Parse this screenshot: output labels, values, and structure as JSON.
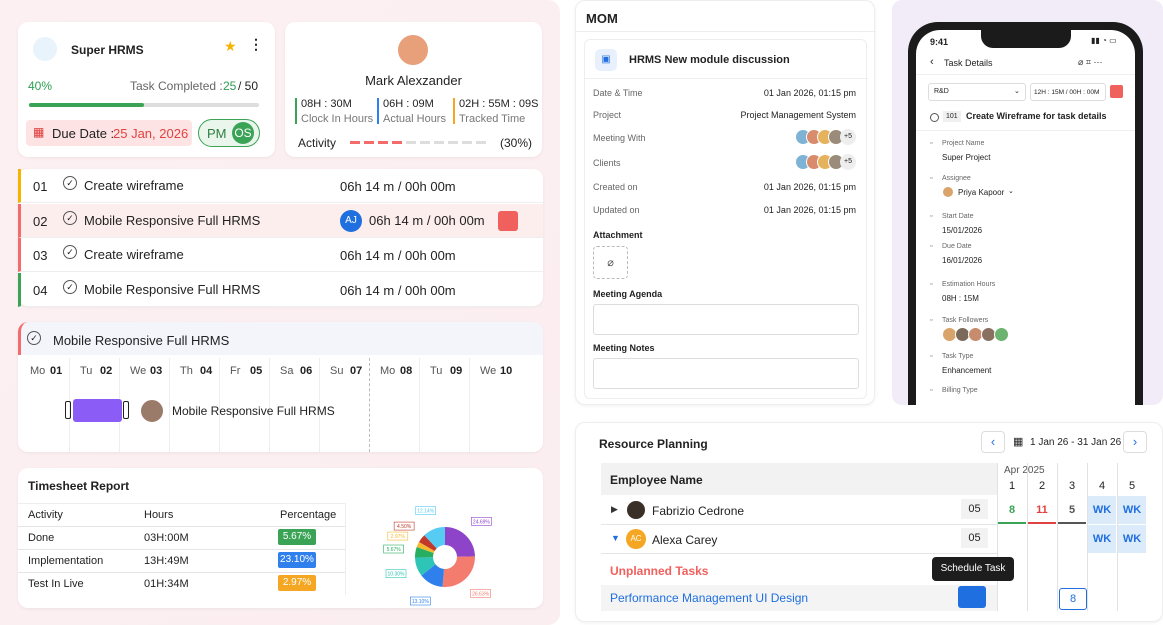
{
  "profile_card": {
    "app_name": "Super HRMS",
    "progress": "40%",
    "task_completed_label": "Task Completed :",
    "task_done": "25",
    "task_total": "/ 50",
    "due_label": "Due Date :",
    "due_date": "25 Jan, 2026",
    "badges": [
      "PM",
      "OS"
    ]
  },
  "user_card": {
    "name": "Mark Alexzander",
    "stats": [
      {
        "value": "08H : 30M",
        "label": "Clock In Hours"
      },
      {
        "value": "06H : 09M",
        "label": "Actual Hours"
      },
      {
        "value": "02H : 55M : 09S",
        "label": "Tracked Time"
      }
    ],
    "activity_label": "Activity",
    "activity_percent": "(30%)"
  },
  "tasks": [
    {
      "index": "01",
      "title": "Create wireframe",
      "time": "06h 14 m / 00h 00m"
    },
    {
      "index": "02",
      "title": "Mobile Responsive Full HRMS",
      "time": "06h 14 m / 00h 00m",
      "avatar": "AJ"
    },
    {
      "index": "03",
      "title": "Create wireframe",
      "time": "06h 14 m / 00h 00m"
    },
    {
      "index": "04",
      "title": "Mobile Responsive Full HRMS",
      "time": "06h 14 m / 00h 00m"
    }
  ],
  "gantt": {
    "title": "Mobile Responsive Full HRMS",
    "days": [
      {
        "dow": "Mo",
        "num": "01"
      },
      {
        "dow": "Tu",
        "num": "02"
      },
      {
        "dow": "We",
        "num": "03"
      },
      {
        "dow": "Th",
        "num": "04"
      },
      {
        "dow": "Fr",
        "num": "05"
      },
      {
        "dow": "Sa",
        "num": "06"
      },
      {
        "dow": "Su",
        "num": "07"
      },
      {
        "dow": "Mo",
        "num": "08"
      },
      {
        "dow": "Tu",
        "num": "09"
      },
      {
        "dow": "We",
        "num": "10"
      }
    ],
    "bar_label": "Mobile Responsive Full HRMS"
  },
  "timesheet": {
    "title": "Timesheet Report",
    "columns": [
      "Activity",
      "Hours",
      "Percentage"
    ],
    "rows": [
      [
        "Done",
        "03H:00M",
        "5.67%"
      ],
      [
        "Implementation",
        "13H:49M",
        "23.10%"
      ],
      [
        "Test In Live",
        "01H:34M",
        "2.97%"
      ]
    ],
    "pie": {
      "values": [
        24.69,
        26.63,
        13.1,
        10.3,
        5.67,
        2.97,
        4.5,
        12.14
      ],
      "value_labels": [
        "24.69%",
        "26.63%",
        "13.10%",
        "10.30%",
        "5.67%",
        "2.97%",
        "4.50%",
        "12.14%"
      ],
      "colors": [
        "#8e44c9",
        "#f47c6e",
        "#2f80ed",
        "#2ec4b6",
        "#27ae60",
        "#f5b82e",
        "#c0392b",
        "#56ccf2"
      ]
    }
  },
  "mom": {
    "title": "MOM",
    "meeting_title": "HRMS New module discussion",
    "fields": [
      {
        "label": "Date & Time",
        "value": "01 Jan 2026, 01:15 pm"
      },
      {
        "label": "Project",
        "value": "Project Management System"
      },
      {
        "label": "Meeting With",
        "more": "+5"
      },
      {
        "label": "Clients",
        "more": "+5"
      },
      {
        "label": "Created on",
        "value": "01 Jan 2026, 01:15 pm"
      },
      {
        "label": "Updated on",
        "value": "01 Jan 2026, 01:15 pm"
      }
    ],
    "attachment": "Attachment",
    "agenda": "Meeting Agenda",
    "notes": "Meeting Notes"
  },
  "phone": {
    "time": "9:41",
    "header": "Task Details",
    "dept": "R&D",
    "timer": "12H : 15M / 00H : 00M",
    "task_id": "101",
    "task_title": "Create Wireframe for task details",
    "fields": [
      {
        "label": "Project Name",
        "value": "Super Project"
      },
      {
        "label": "Assignee",
        "value": "Priya Kapoor"
      },
      {
        "label": "Start Date",
        "value": "15/01/2026"
      },
      {
        "label": "Due Date",
        "value": "16/01/2026"
      },
      {
        "label": "Estimation Hours",
        "value": "08H : 15M"
      },
      {
        "label": "Task Followers"
      },
      {
        "label": "Task Type",
        "value": "Enhancement"
      },
      {
        "label": "Billing Type"
      }
    ]
  },
  "resource": {
    "title": "Resource Planning",
    "range": "1 Jan 26 - 31 Jan 26",
    "column": "Employee Name",
    "month": "Apr 2025",
    "days": [
      "1",
      "2",
      "3",
      "4",
      "5"
    ],
    "employees": [
      {
        "name": "Fabrizio Cedrone",
        "count": "05",
        "cells": [
          "8",
          "11",
          "5",
          "WK",
          "WK"
        ]
      },
      {
        "initials": "AC",
        "name": "Alexa Carey",
        "count": "05",
        "cells": [
          null,
          null,
          null,
          "WK",
          "WK"
        ]
      }
    ],
    "unplanned": "Unplanned Tasks",
    "task": "Performance Management UI Design",
    "tooltip": "Schedule Task",
    "scheduled": "8"
  }
}
